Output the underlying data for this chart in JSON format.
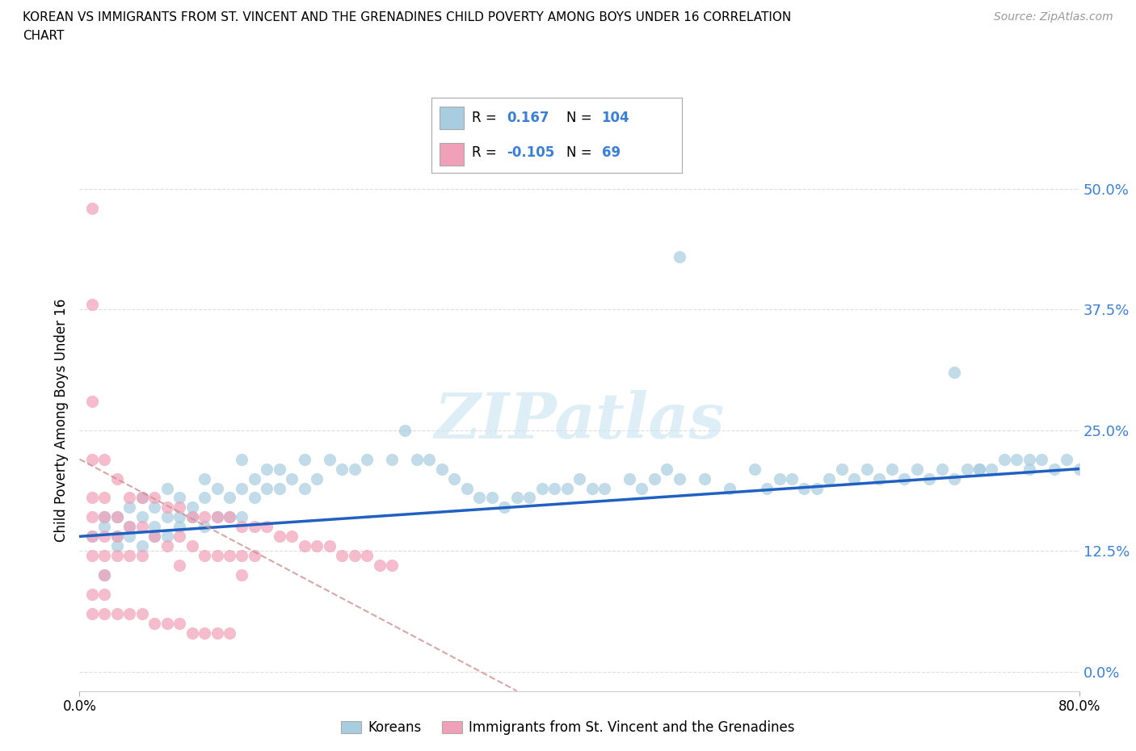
{
  "title_line1": "KOREAN VS IMMIGRANTS FROM ST. VINCENT AND THE GRENADINES CHILD POVERTY AMONG BOYS UNDER 16 CORRELATION",
  "title_line2": "CHART",
  "source": "Source: ZipAtlas.com",
  "ylabel": "Child Poverty Among Boys Under 16",
  "ytick_labels": [
    "0.0%",
    "12.5%",
    "25.0%",
    "37.5%",
    "50.0%"
  ],
  "ytick_values": [
    0.0,
    0.125,
    0.25,
    0.375,
    0.5
  ],
  "xlim": [
    0.0,
    0.8
  ],
  "ylim": [
    -0.02,
    0.54
  ],
  "korean_R": 0.167,
  "korean_N": 104,
  "immigrant_R": -0.105,
  "immigrant_N": 69,
  "korean_color": "#a8cce0",
  "immigrant_color": "#f0a0b8",
  "trend_korean_color": "#2060c0",
  "trend_immigrant_color": "#e08090",
  "watermark": "ZIPatlas",
  "legend_korean": "Koreans",
  "legend_immigrant": "Immigrants from St. Vincent and the Grenadines",
  "korean_x": [
    0.01,
    0.02,
    0.02,
    0.02,
    0.03,
    0.03,
    0.03,
    0.04,
    0.04,
    0.04,
    0.05,
    0.05,
    0.05,
    0.06,
    0.06,
    0.06,
    0.07,
    0.07,
    0.07,
    0.08,
    0.08,
    0.08,
    0.09,
    0.09,
    0.1,
    0.1,
    0.1,
    0.11,
    0.11,
    0.12,
    0.12,
    0.13,
    0.13,
    0.13,
    0.14,
    0.14,
    0.15,
    0.15,
    0.16,
    0.16,
    0.17,
    0.18,
    0.18,
    0.19,
    0.2,
    0.21,
    0.22,
    0.23,
    0.25,
    0.26,
    0.27,
    0.28,
    0.29,
    0.3,
    0.31,
    0.32,
    0.33,
    0.34,
    0.35,
    0.36,
    0.37,
    0.38,
    0.39,
    0.4,
    0.41,
    0.42,
    0.44,
    0.45,
    0.46,
    0.47,
    0.48,
    0.5,
    0.52,
    0.54,
    0.55,
    0.56,
    0.57,
    0.58,
    0.59,
    0.6,
    0.61,
    0.62,
    0.63,
    0.64,
    0.65,
    0.66,
    0.67,
    0.68,
    0.69,
    0.7,
    0.71,
    0.72,
    0.73,
    0.74,
    0.75,
    0.76,
    0.77,
    0.78,
    0.79,
    0.8,
    0.48,
    0.7,
    0.72,
    0.76
  ],
  "korean_y": [
    0.14,
    0.15,
    0.16,
    0.1,
    0.14,
    0.16,
    0.13,
    0.15,
    0.17,
    0.14,
    0.16,
    0.13,
    0.18,
    0.15,
    0.14,
    0.17,
    0.16,
    0.14,
    0.19,
    0.16,
    0.15,
    0.18,
    0.17,
    0.16,
    0.18,
    0.15,
    0.2,
    0.19,
    0.16,
    0.18,
    0.16,
    0.22,
    0.19,
    0.16,
    0.2,
    0.18,
    0.21,
    0.19,
    0.21,
    0.19,
    0.2,
    0.22,
    0.19,
    0.2,
    0.22,
    0.21,
    0.21,
    0.22,
    0.22,
    0.25,
    0.22,
    0.22,
    0.21,
    0.2,
    0.19,
    0.18,
    0.18,
    0.17,
    0.18,
    0.18,
    0.19,
    0.19,
    0.19,
    0.2,
    0.19,
    0.19,
    0.2,
    0.19,
    0.2,
    0.21,
    0.2,
    0.2,
    0.19,
    0.21,
    0.19,
    0.2,
    0.2,
    0.19,
    0.19,
    0.2,
    0.21,
    0.2,
    0.21,
    0.2,
    0.21,
    0.2,
    0.21,
    0.2,
    0.21,
    0.2,
    0.21,
    0.21,
    0.21,
    0.22,
    0.22,
    0.21,
    0.22,
    0.21,
    0.22,
    0.21,
    0.43,
    0.31,
    0.21,
    0.22
  ],
  "immigrant_x": [
    0.01,
    0.01,
    0.01,
    0.01,
    0.01,
    0.01,
    0.01,
    0.01,
    0.02,
    0.02,
    0.02,
    0.02,
    0.02,
    0.02,
    0.03,
    0.03,
    0.03,
    0.03,
    0.04,
    0.04,
    0.04,
    0.05,
    0.05,
    0.05,
    0.06,
    0.06,
    0.07,
    0.07,
    0.08,
    0.08,
    0.08,
    0.09,
    0.09,
    0.1,
    0.1,
    0.11,
    0.11,
    0.12,
    0.12,
    0.13,
    0.13,
    0.13,
    0.14,
    0.14,
    0.15,
    0.16,
    0.17,
    0.18,
    0.19,
    0.2,
    0.21,
    0.22,
    0.23,
    0.24,
    0.25,
    0.01,
    0.01,
    0.02,
    0.02,
    0.03,
    0.04,
    0.05,
    0.06,
    0.07,
    0.08,
    0.09,
    0.1,
    0.11,
    0.12
  ],
  "immigrant_y": [
    0.48,
    0.38,
    0.28,
    0.22,
    0.18,
    0.16,
    0.14,
    0.12,
    0.22,
    0.18,
    0.16,
    0.14,
    0.12,
    0.1,
    0.2,
    0.16,
    0.14,
    0.12,
    0.18,
    0.15,
    0.12,
    0.18,
    0.15,
    0.12,
    0.18,
    0.14,
    0.17,
    0.13,
    0.17,
    0.14,
    0.11,
    0.16,
    0.13,
    0.16,
    0.12,
    0.16,
    0.12,
    0.16,
    0.12,
    0.15,
    0.12,
    0.1,
    0.15,
    0.12,
    0.15,
    0.14,
    0.14,
    0.13,
    0.13,
    0.13,
    0.12,
    0.12,
    0.12,
    0.11,
    0.11,
    0.08,
    0.06,
    0.08,
    0.06,
    0.06,
    0.06,
    0.06,
    0.05,
    0.05,
    0.05,
    0.04,
    0.04,
    0.04,
    0.04
  ]
}
